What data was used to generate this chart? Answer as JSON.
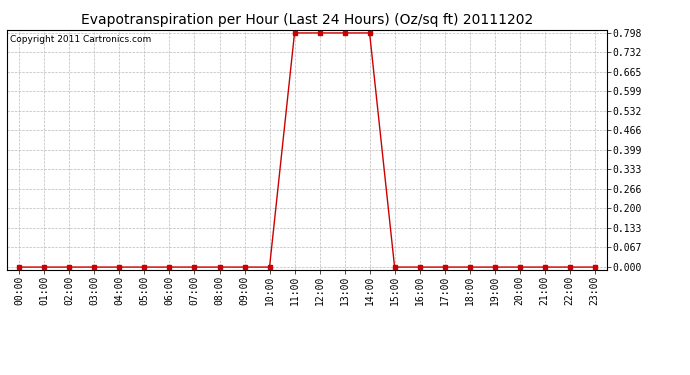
{
  "title": "Evapotranspiration per Hour (Last 24 Hours) (Oz/sq ft) 20111202",
  "copyright": "Copyright 2011 Cartronics.com",
  "hours": [
    0,
    1,
    2,
    3,
    4,
    5,
    6,
    7,
    8,
    9,
    10,
    11,
    12,
    13,
    14,
    15,
    16,
    17,
    18,
    19,
    20,
    21,
    22,
    23
  ],
  "values": [
    0,
    0,
    0,
    0,
    0,
    0,
    0,
    0,
    0,
    0,
    0,
    0.798,
    0.798,
    0.798,
    0.798,
    0,
    0,
    0,
    0,
    0,
    0,
    0,
    0,
    0
  ],
  "x_labels": [
    "00:00",
    "01:00",
    "02:00",
    "03:00",
    "04:00",
    "05:00",
    "06:00",
    "07:00",
    "08:00",
    "09:00",
    "10:00",
    "11:00",
    "12:00",
    "13:00",
    "14:00",
    "15:00",
    "16:00",
    "17:00",
    "18:00",
    "19:00",
    "20:00",
    "21:00",
    "22:00",
    "23:00"
  ],
  "y_ticks": [
    0.0,
    0.067,
    0.133,
    0.2,
    0.266,
    0.333,
    0.399,
    0.466,
    0.532,
    0.599,
    0.665,
    0.732,
    0.798
  ],
  "y_tick_labels": [
    "0.000",
    "0.067",
    "0.133",
    "0.200",
    "0.266",
    "0.333",
    "0.399",
    "0.466",
    "0.532",
    "0.599",
    "0.665",
    "0.732",
    "0.798"
  ],
  "ylim": [
    0,
    0.798
  ],
  "line_color": "#cc0000",
  "marker": "s",
  "marker_size": 2.5,
  "background_color": "#ffffff",
  "grid_color": "#bbbbbb",
  "title_fontsize": 10,
  "tick_fontsize": 7,
  "copyright_fontsize": 6.5
}
